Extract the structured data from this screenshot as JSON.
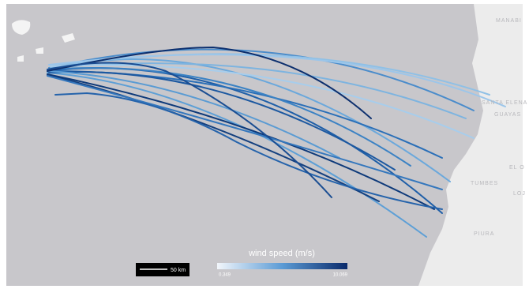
{
  "map": {
    "places": [
      "MANABI",
      "SANTA ELENA",
      "GUAYAS",
      "EL O",
      "TUMBES",
      "LOJ",
      "PIURA"
    ],
    "legend": {
      "title": "wind speed (m/s)",
      "min": 0.349,
      "max": 10.069
    },
    "scale_bar": "50 km"
  }
}
